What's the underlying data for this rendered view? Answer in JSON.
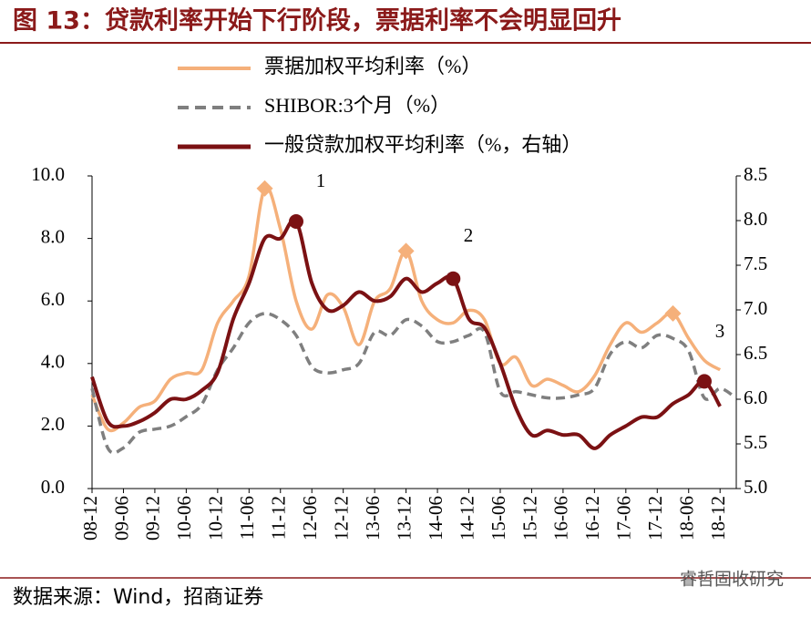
{
  "header": {
    "title": "图 13：贷款利率开始下行阶段，票据利率不会明显回升"
  },
  "chart_data": {
    "type": "line",
    "categories": [
      "08-12",
      null,
      "09-06",
      null,
      "09-12",
      null,
      "10-06",
      null,
      "10-12",
      null,
      "11-06",
      null,
      "11-12",
      null,
      "12-06",
      null,
      "12-12",
      null,
      "13-06",
      null,
      "13-12",
      null,
      "14-06",
      null,
      "14-12",
      null,
      "15-06",
      null,
      "15-12",
      null,
      "16-06",
      null,
      "16-12",
      null,
      "17-06",
      null,
      "17-12",
      null,
      "18-06",
      null,
      "18-12",
      null
    ],
    "series": [
      {
        "name": "票据加权平均利率（%）",
        "color": "#F5B07A",
        "dash": false,
        "values": [
          3.0,
          1.9,
          2.1,
          2.6,
          2.8,
          3.5,
          3.7,
          3.8,
          5.3,
          6.0,
          6.8,
          9.6,
          8.3,
          6.0,
          5.1,
          6.2,
          5.8,
          4.6,
          6.0,
          6.4,
          7.6,
          6.0,
          5.4,
          5.3,
          5.7,
          5.4,
          4.0,
          4.2,
          3.3,
          3.5,
          3.3,
          3.1,
          3.6,
          4.6,
          5.3,
          5.0,
          5.3,
          5.6,
          4.8,
          4.1,
          3.8,
          null
        ]
      },
      {
        "name": "SHIBOR:3个月（%）",
        "color": "#7F7F7F",
        "dash": true,
        "values": [
          3.2,
          1.3,
          1.3,
          1.8,
          1.9,
          2.0,
          2.3,
          2.7,
          3.8,
          4.5,
          5.3,
          5.6,
          5.4,
          4.9,
          3.9,
          3.7,
          3.8,
          4.0,
          5.0,
          4.9,
          5.4,
          5.2,
          4.7,
          4.7,
          4.9,
          5.0,
          3.1,
          3.1,
          3.0,
          2.9,
          2.9,
          3.0,
          3.2,
          4.3,
          4.7,
          4.5,
          4.9,
          4.8,
          4.4,
          2.9,
          3.2,
          2.9
        ]
      },
      {
        "name": "一般贷款加权平均利率（%，右轴）",
        "color": "#7B1113",
        "dash": false,
        "axis": "y2",
        "values": [
          6.25,
          5.75,
          5.7,
          5.75,
          5.85,
          6.0,
          6.0,
          6.1,
          6.3,
          6.9,
          7.3,
          7.8,
          7.8,
          7.99,
          7.3,
          7.0,
          7.05,
          7.2,
          7.1,
          7.15,
          7.35,
          7.2,
          7.3,
          7.35,
          6.9,
          6.8,
          6.4,
          5.9,
          5.6,
          5.65,
          5.6,
          5.6,
          5.45,
          5.6,
          5.7,
          5.8,
          5.8,
          5.95,
          6.05,
          6.2,
          5.92,
          null
        ]
      }
    ],
    "annotations": [
      "1",
      "2",
      "3"
    ],
    "ylim": [
      0,
      10
    ],
    "yticks": [
      {
        "value": 0,
        "label": "0.0"
      },
      {
        "value": 2,
        "label": "2.0"
      },
      {
        "value": 4,
        "label": "4.0"
      },
      {
        "value": 6,
        "label": "6.0"
      },
      {
        "value": 8,
        "label": "8.0"
      },
      {
        "value": 10,
        "label": "10.0"
      }
    ],
    "y2lim": [
      5,
      8.5
    ],
    "y2ticks": [
      {
        "value": 5,
        "label": "5.0"
      },
      5.5,
      {
        "value": 6,
        "label": "6.0"
      },
      6.5,
      {
        "value": 7,
        "label": "7.0"
      },
      7.5,
      {
        "value": 8,
        "label": "8.0"
      },
      8.5
    ]
  },
  "footer": {
    "source": "数据来源：Wind，招商证券",
    "watermark": "睿哲固收研究"
  }
}
